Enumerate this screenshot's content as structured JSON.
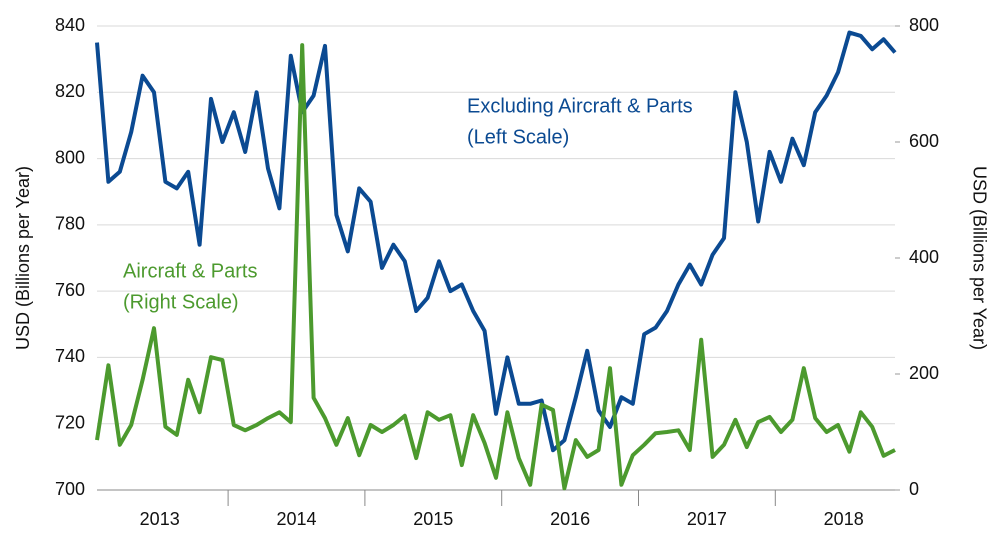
{
  "chart_data": {
    "type": "line",
    "y_label": "USD (Billions per Year)",
    "y2_label": "USD (Billions per Year)",
    "categories": [
      null,
      null,
      null,
      null,
      null,
      null,
      "2013",
      null,
      null,
      null,
      null,
      null,
      null,
      null,
      null,
      null,
      null,
      null,
      "2014",
      null,
      null,
      null,
      null,
      null,
      null,
      null,
      null,
      null,
      null,
      null,
      "2015",
      null,
      null,
      null,
      null,
      null,
      null,
      null,
      null,
      null,
      null,
      null,
      "2016",
      null,
      null,
      null,
      null,
      null,
      null,
      null,
      null,
      null,
      null,
      null,
      "2017",
      null,
      null,
      null,
      null,
      null,
      null,
      null,
      null,
      null,
      null,
      null,
      "2018",
      null,
      null,
      null,
      null
    ],
    "ylim": [
      700,
      840
    ],
    "yticks": [
      700,
      720,
      740,
      760,
      780,
      800,
      820,
      840
    ],
    "y2lim": [
      0,
      800
    ],
    "y2ticks": [
      0,
      200,
      400,
      600,
      800
    ],
    "grid": true,
    "series": [
      {
        "name": "Excluding Aircraft & Parts",
        "color": "#0b4a92",
        "axis": "y",
        "label_lines": [
          "Excluding Aircraft & Parts",
          "(Left Scale)"
        ],
        "values": [
          835,
          793,
          796,
          808,
          825,
          820,
          793,
          791,
          796,
          774,
          818,
          805,
          814,
          802,
          820,
          797,
          785,
          831,
          814,
          819,
          834,
          783,
          772,
          791,
          787,
          767,
          774,
          769,
          754,
          758,
          769,
          760,
          762,
          754,
          748,
          723,
          740,
          726,
          726,
          727,
          712,
          715,
          728,
          742,
          724,
          719,
          728,
          726,
          747,
          749,
          754,
          762,
          768,
          762,
          771,
          776,
          820,
          805,
          781,
          802,
          793,
          806,
          798,
          814,
          819,
          826,
          838,
          837,
          833,
          836,
          832
        ]
      },
      {
        "name": "Aircraft & Parts",
        "color": "#4c9a2e",
        "axis": "y2",
        "label_lines": [
          "Aircraft & Parts",
          "(Right Scale)"
        ],
        "values": [
          86,
          215,
          78,
          112,
          190,
          279,
          109,
          95,
          190,
          134,
          229,
          224,
          112,
          103,
          112,
          124,
          134,
          117,
          767,
          159,
          124,
          78,
          124,
          60,
          112,
          100,
          112,
          128,
          55,
          134,
          121,
          129,
          43,
          129,
          81,
          21,
          134,
          55,
          9,
          147,
          138,
          3,
          86,
          57,
          69,
          210,
          9,
          60,
          78,
          98,
          100,
          103,
          69,
          259,
          57,
          78,
          121,
          74,
          117,
          126,
          100,
          121,
          210,
          124,
          100,
          112,
          66,
          134,
          109,
          59,
          69
        ]
      }
    ]
  }
}
